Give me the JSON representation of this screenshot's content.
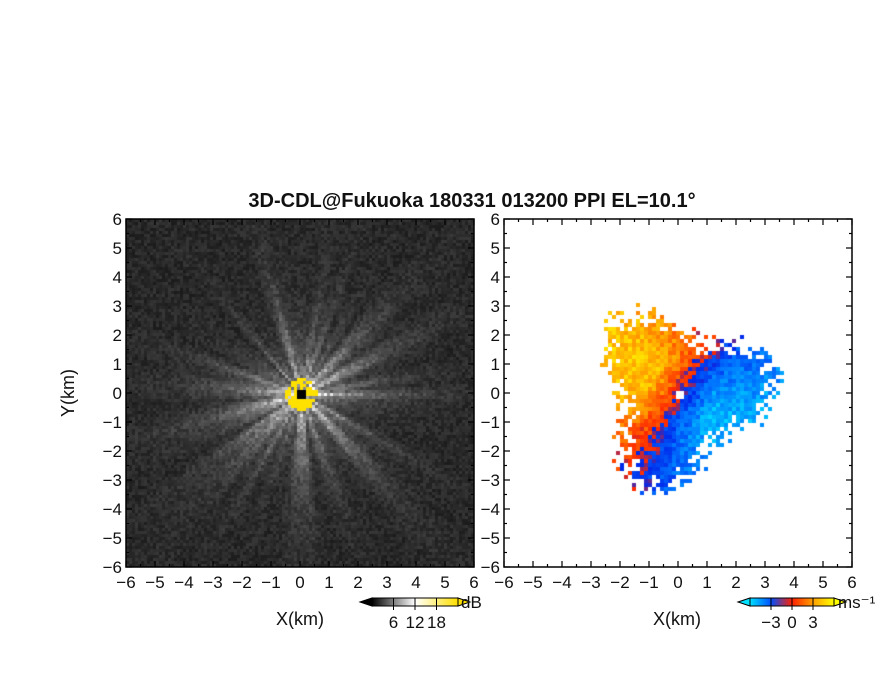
{
  "chart_data": [
    {
      "type": "heatmap",
      "title": "3D-CDL@Fukuoka 180331 013200 PPI EL=10.1°",
      "quantity": "SNR",
      "xlabel": "X(km)",
      "ylabel": "Y(km)",
      "xlim": [
        -6,
        6
      ],
      "ylim": [
        -6,
        6
      ],
      "x_ticks": [
        -6,
        -5,
        -4,
        -3,
        -2,
        -1,
        0,
        1,
        2,
        3,
        4,
        5,
        6
      ],
      "y_ticks": [
        -6,
        -5,
        -4,
        -3,
        -2,
        -1,
        0,
        1,
        2,
        3,
        4,
        5,
        6
      ],
      "colorbar": {
        "unit": "dB",
        "ticks": [
          "6",
          "12",
          "18"
        ],
        "range": [
          0,
          24
        ],
        "colors": [
          "#000000",
          "#ffffff",
          "#ffe000"
        ]
      },
      "pattern": "radial streaks, strongest near the radar at origin, near-saturated (yellow) within ~0.5 km",
      "radar_position": [
        0,
        0
      ],
      "grid": false
    },
    {
      "type": "heatmap",
      "quantity": "Doppler velocity",
      "xlabel": "X(km)",
      "ylabel": "",
      "xlim": [
        -6,
        6
      ],
      "ylim": [
        -6,
        6
      ],
      "x_ticks": [
        -6,
        -5,
        -4,
        -3,
        -2,
        -1,
        0,
        1,
        2,
        3,
        4,
        5,
        6
      ],
      "y_ticks": [
        -6,
        -5,
        -4,
        -3,
        -2,
        -1,
        0,
        1,
        2,
        3,
        4,
        5,
        6
      ],
      "colorbar": {
        "unit": "ms⁻¹",
        "ticks": [
          "−3",
          "0",
          "3"
        ],
        "range": [
          -4.5,
          4.5
        ],
        "colors": [
          "#00e0ff",
          "#0050ff",
          "#ff2000",
          "#ffa000",
          "#ffff00"
        ]
      },
      "pattern": "approaching (blue) to the east/south-east, receding (orange/yellow) to the west/north-west, data within ~3.5 km of radar",
      "radar_position": [
        0,
        0
      ],
      "grid": false
    }
  ]
}
